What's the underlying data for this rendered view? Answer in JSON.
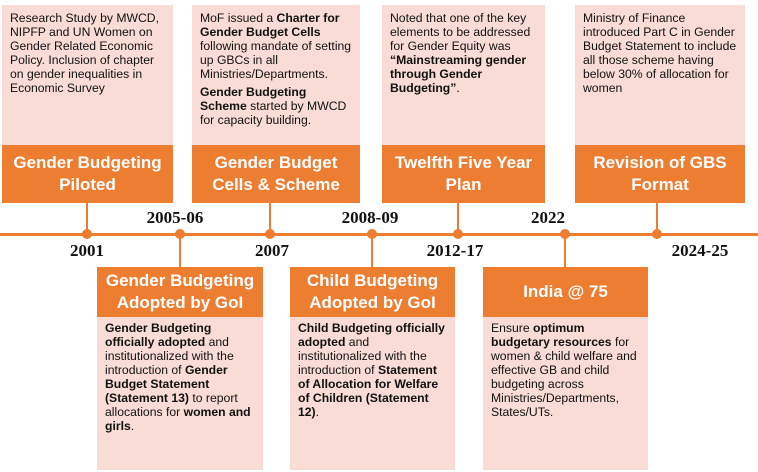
{
  "top_events": [
    {
      "year": "2001",
      "title": "Gender Budgeting Piloted",
      "description": [
        [
          {
            "text": "Research Study by MWCD, NIPFP and UN Women on  Gender Related Economic Policy. Inclusion of chapter on gender inequalities in Economic Survey",
            "bold": false
          }
        ]
      ]
    },
    {
      "year": "2007",
      "title": "Gender Budget Cells & Scheme",
      "description": [
        [
          {
            "text": "MoF issued a ",
            "bold": false
          },
          {
            "text": "Charter for Gender Budget Cells",
            "bold": true
          },
          {
            "text": " following mandate of setting up GBCs in all Ministries/Departments.",
            "bold": false
          }
        ],
        [
          {
            "text": "Gender Budgeting Scheme",
            "bold": true
          },
          {
            "text": " started by MWCD for capacity building.",
            "bold": false
          }
        ]
      ]
    },
    {
      "year": "2012-17",
      "title": "Twelfth Five Year Plan",
      "description": [
        [
          {
            "text": "Noted that one of the key elements to be addressed for Gender Equity was ",
            "bold": false
          },
          {
            "text": "“Mainstreaming gender through Gender Budgeting”",
            "bold": true
          },
          {
            "text": ".",
            "bold": false
          }
        ]
      ]
    },
    {
      "year": "2024-25",
      "title": "Revision of GBS Format",
      "description": [
        [
          {
            "text": "Ministry of Finance introduced Part C in Gender Budget Statement to include all those scheme having below 30% of allocation for women",
            "bold": false
          }
        ]
      ]
    }
  ],
  "bottom_events": [
    {
      "year": "2005-06",
      "title": "Gender Budgeting Adopted by GoI",
      "description": [
        [
          {
            "text": "Gender Budgeting officially adopted",
            "bold": true
          },
          {
            "text": " and institutionalized with the introduction of ",
            "bold": false
          },
          {
            "text": "Gender Budget Statement (Statement 13)",
            "bold": true
          },
          {
            "text": " to report allocations for ",
            "bold": false
          },
          {
            "text": "women and girls",
            "bold": true
          },
          {
            "text": ".",
            "bold": false
          }
        ]
      ]
    },
    {
      "year": "2008-09",
      "title": "Child Budgeting Adopted by GoI",
      "description": [
        [
          {
            "text": "Child Budgeting officially adopted",
            "bold": true
          },
          {
            "text": " and institutionalized with the introduction of ",
            "bold": false
          },
          {
            "text": "Statement of Allocation for Welfare of Children (Statement 12)",
            "bold": true
          },
          {
            "text": ".",
            "bold": false
          }
        ]
      ]
    },
    {
      "year": "2022",
      "title": "India @ 75",
      "description": [
        [
          {
            "text": "Ensure ",
            "bold": false
          },
          {
            "text": "optimum budgetary resources",
            "bold": true
          },
          {
            "text": " for women & child welfare and effective GB and child budgeting across Ministries/Departments, States/UTs.",
            "bold": false
          }
        ]
      ]
    }
  ]
}
